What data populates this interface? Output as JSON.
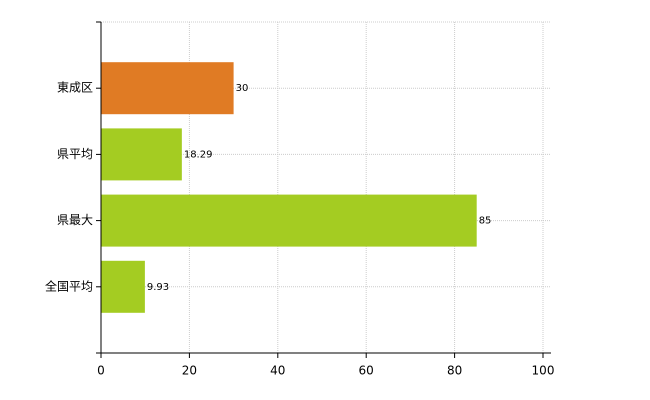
{
  "chart_data": {
    "type": "bar",
    "orientation": "horizontal",
    "categories": [
      "東成区",
      "県平均",
      "県最大",
      "全国平均"
    ],
    "values": [
      30,
      18.29,
      85,
      9.93
    ],
    "colors": [
      "#e07b24",
      "#a4cc22",
      "#a4cc22",
      "#a4cc22"
    ],
    "xlim": [
      0,
      100
    ],
    "xticks": [
      0,
      20,
      40,
      60,
      80,
      100
    ],
    "grid": true
  }
}
